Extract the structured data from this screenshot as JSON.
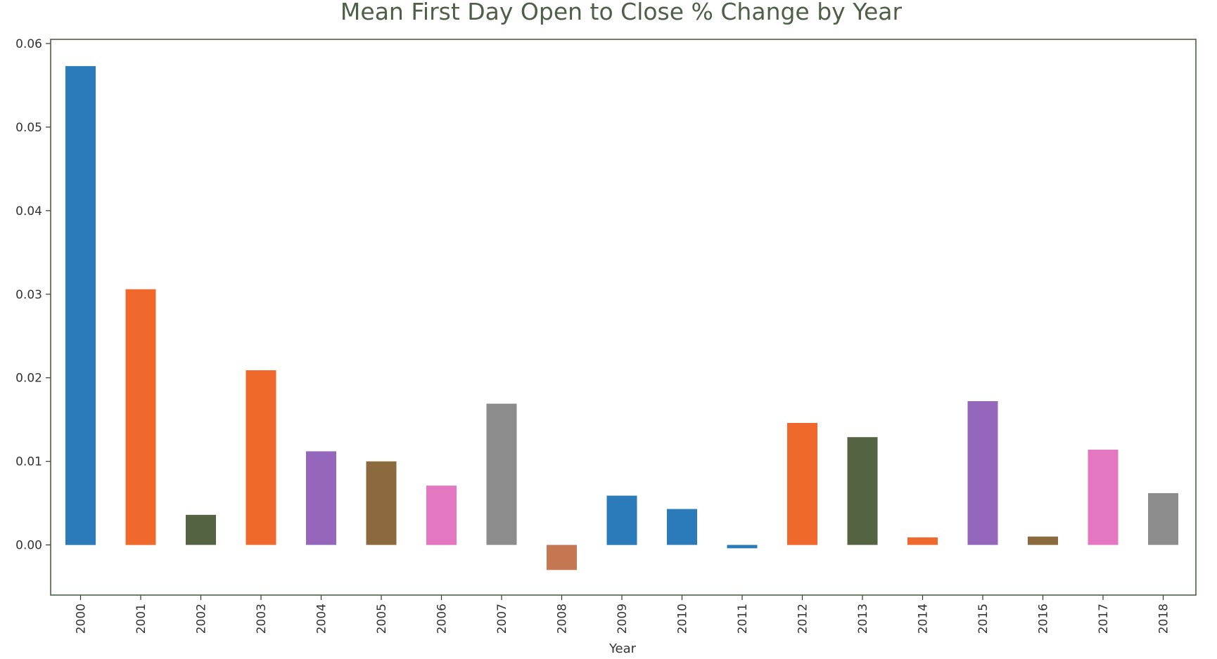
{
  "chart_data": {
    "type": "bar",
    "title": "Mean First Day Open to Close % Change by Year",
    "xlabel": "Year",
    "ylabel": "",
    "ylim": [
      -0.006,
      0.0605
    ],
    "yticks": [
      0.0,
      0.01,
      0.02,
      0.03,
      0.04,
      0.05,
      0.06
    ],
    "ytick_labels": [
      "0.00",
      "0.01",
      "0.02",
      "0.03",
      "0.04",
      "0.05",
      "0.06"
    ],
    "categories": [
      "2000",
      "2001",
      "2002",
      "2003",
      "2004",
      "2005",
      "2006",
      "2007",
      "2008",
      "2009",
      "2010",
      "2011",
      "2012",
      "2013",
      "2014",
      "2015",
      "2016",
      "2017",
      "2018"
    ],
    "values": [
      0.0573,
      0.0306,
      0.0036,
      0.0209,
      0.0112,
      0.01,
      0.0071,
      0.0169,
      -0.003,
      0.0059,
      0.0043,
      -0.0004,
      0.0146,
      0.0129,
      0.0009,
      0.0172,
      0.001,
      0.0114,
      0.0062
    ],
    "colors": [
      "#2b7bba",
      "#f0692c",
      "#546341",
      "#f0692c",
      "#9467bd",
      "#8b6b3d",
      "#e377c2",
      "#8c8c8c",
      "#c47752",
      "#2b7bba",
      "#2b7bba",
      "#2b7bba",
      "#f0692c",
      "#546341",
      "#f0692c",
      "#9467bd",
      "#8b6b3d",
      "#e377c2",
      "#8c8c8c"
    ],
    "grid": false,
    "legend": "none"
  }
}
